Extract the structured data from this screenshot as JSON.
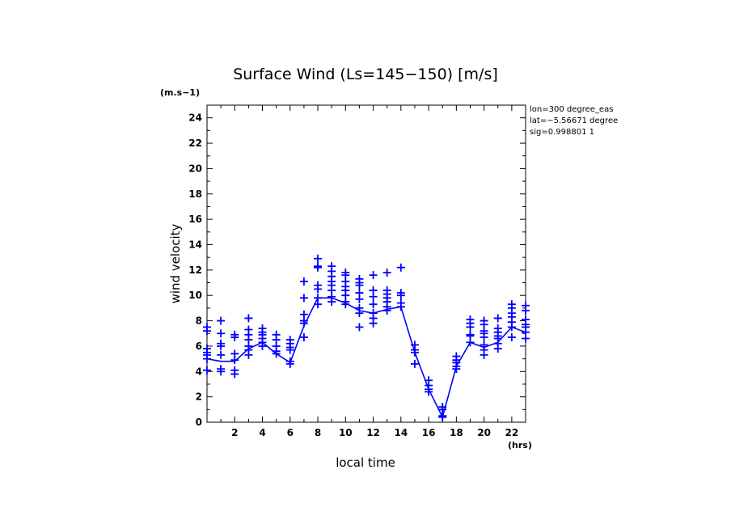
{
  "chart_data": {
    "type": "scatter",
    "title": "Surface Wind  (Ls=145−150) [m/s]",
    "ylabel": "wind velocity",
    "xlabel": "local time",
    "y_unit": "(m.s−1)",
    "x_unit": "(hrs)",
    "info_lines": [
      "lon=300 degree_eas",
      "lat=−5.56671 degree",
      "sig=0.998801 1"
    ],
    "xlim": [
      0,
      23
    ],
    "ylim": [
      0,
      25
    ],
    "x_ticks": [
      2,
      4,
      6,
      8,
      10,
      12,
      14,
      16,
      18,
      20,
      22
    ],
    "x_tick_labels": [
      "2",
      "4",
      "6",
      "8",
      "10",
      "12",
      "14",
      "16",
      "18",
      "20",
      "22"
    ],
    "y_ticks": [
      0,
      2,
      4,
      6,
      8,
      10,
      12,
      14,
      16,
      18,
      20,
      22,
      24
    ],
    "y_tick_labels": [
      "0",
      "2",
      "4",
      "6",
      "8",
      "10",
      "12",
      "14",
      "16",
      "18",
      "20",
      "22",
      "24"
    ],
    "grid": false,
    "color": "#0000ff",
    "series": [
      {
        "type": "line",
        "x": [
          0,
          1,
          2,
          3,
          4,
          5,
          6,
          7,
          8,
          9,
          10,
          11,
          12,
          13,
          14,
          15,
          16,
          17,
          18,
          19,
          20,
          21,
          22,
          23
        ],
        "values": [
          5.0,
          4.8,
          4.8,
          5.8,
          6.3,
          5.4,
          4.7,
          7.6,
          9.8,
          9.8,
          9.4,
          8.8,
          8.6,
          8.9,
          9.1,
          5.5,
          2.6,
          0.4,
          4.4,
          6.3,
          5.9,
          6.3,
          7.5,
          7.1
        ]
      },
      {
        "type": "scatter",
        "marker": "+",
        "points": [
          [
            0,
            4.1
          ],
          [
            0,
            5.0
          ],
          [
            0,
            5.3
          ],
          [
            0,
            5.5
          ],
          [
            0,
            5.8
          ],
          [
            0,
            7.2
          ],
          [
            0,
            7.5
          ],
          [
            1,
            4.0
          ],
          [
            1,
            4.2
          ],
          [
            1,
            5.3
          ],
          [
            1,
            6.0
          ],
          [
            1,
            6.2
          ],
          [
            1,
            7.0
          ],
          [
            1,
            8.0
          ],
          [
            2,
            3.8
          ],
          [
            2,
            4.1
          ],
          [
            2,
            4.9
          ],
          [
            2,
            5.4
          ],
          [
            2,
            6.7
          ],
          [
            2,
            6.9
          ],
          [
            3,
            5.3
          ],
          [
            3,
            5.7
          ],
          [
            3,
            6.0
          ],
          [
            3,
            6.5
          ],
          [
            3,
            6.9
          ],
          [
            3,
            7.3
          ],
          [
            3,
            8.2
          ],
          [
            4,
            6.0
          ],
          [
            4,
            6.3
          ],
          [
            4,
            6.6
          ],
          [
            4,
            6.9
          ],
          [
            4,
            7.1
          ],
          [
            4,
            7.4
          ],
          [
            5,
            5.4
          ],
          [
            5,
            5.6
          ],
          [
            5,
            6.0
          ],
          [
            5,
            6.5
          ],
          [
            5,
            6.9
          ],
          [
            6,
            4.6
          ],
          [
            6,
            4.8
          ],
          [
            6,
            5.7
          ],
          [
            6,
            5.9
          ],
          [
            6,
            6.2
          ],
          [
            6,
            6.5
          ],
          [
            7,
            6.7
          ],
          [
            7,
            7.8
          ],
          [
            7,
            8.0
          ],
          [
            7,
            8.5
          ],
          [
            7,
            9.8
          ],
          [
            7,
            11.1
          ],
          [
            8,
            9.3
          ],
          [
            8,
            9.8
          ],
          [
            8,
            10.5
          ],
          [
            8,
            10.8
          ],
          [
            8,
            12.2
          ],
          [
            8,
            12.3
          ],
          [
            8,
            12.9
          ],
          [
            9,
            9.5
          ],
          [
            9,
            9.9
          ],
          [
            9,
            10.4
          ],
          [
            9,
            10.8
          ],
          [
            9,
            11.1
          ],
          [
            9,
            11.5
          ],
          [
            9,
            11.9
          ],
          [
            9,
            12.3
          ],
          [
            10,
            9.3
          ],
          [
            10,
            9.5
          ],
          [
            10,
            10.0
          ],
          [
            10,
            10.4
          ],
          [
            10,
            10.7
          ],
          [
            10,
            11.1
          ],
          [
            10,
            11.6
          ],
          [
            10,
            11.8
          ],
          [
            11,
            7.5
          ],
          [
            11,
            8.6
          ],
          [
            11,
            9.0
          ],
          [
            11,
            9.7
          ],
          [
            11,
            10.2
          ],
          [
            11,
            10.8
          ],
          [
            11,
            11.0
          ],
          [
            11,
            11.3
          ],
          [
            12,
            7.8
          ],
          [
            12,
            8.2
          ],
          [
            12,
            8.6
          ],
          [
            12,
            9.3
          ],
          [
            12,
            9.9
          ],
          [
            12,
            10.4
          ],
          [
            12,
            11.6
          ],
          [
            13,
            8.8
          ],
          [
            13,
            9.1
          ],
          [
            13,
            9.5
          ],
          [
            13,
            9.8
          ],
          [
            13,
            10.1
          ],
          [
            13,
            10.4
          ],
          [
            13,
            11.8
          ],
          [
            14,
            9.1
          ],
          [
            14,
            9.4
          ],
          [
            14,
            10.0
          ],
          [
            14,
            10.2
          ],
          [
            14,
            12.2
          ],
          [
            15,
            4.6
          ],
          [
            15,
            5.5
          ],
          [
            15,
            5.7
          ],
          [
            15,
            6.1
          ],
          [
            16,
            2.4
          ],
          [
            16,
            2.6
          ],
          [
            16,
            2.9
          ],
          [
            16,
            3.3
          ],
          [
            17,
            0.4
          ],
          [
            17,
            0.5
          ],
          [
            17,
            1.0
          ],
          [
            17,
            1.2
          ],
          [
            18,
            4.2
          ],
          [
            18,
            4.4
          ],
          [
            18,
            4.7
          ],
          [
            18,
            4.9
          ],
          [
            18,
            5.2
          ],
          [
            19,
            6.3
          ],
          [
            19,
            6.8
          ],
          [
            19,
            6.9
          ],
          [
            19,
            7.5
          ],
          [
            19,
            7.8
          ],
          [
            19,
            8.1
          ],
          [
            20,
            5.3
          ],
          [
            20,
            5.7
          ],
          [
            20,
            6.1
          ],
          [
            20,
            6.7
          ],
          [
            20,
            7.0
          ],
          [
            20,
            7.2
          ],
          [
            20,
            7.7
          ],
          [
            20,
            8.0
          ],
          [
            21,
            5.8
          ],
          [
            21,
            6.2
          ],
          [
            21,
            6.6
          ],
          [
            21,
            6.8
          ],
          [
            21,
            7.1
          ],
          [
            21,
            7.4
          ],
          [
            21,
            8.2
          ],
          [
            22,
            6.7
          ],
          [
            22,
            7.5
          ],
          [
            22,
            7.9
          ],
          [
            22,
            8.3
          ],
          [
            22,
            8.6
          ],
          [
            22,
            9.0
          ],
          [
            22,
            9.3
          ],
          [
            23,
            6.6
          ],
          [
            23,
            7.1
          ],
          [
            23,
            7.5
          ],
          [
            23,
            7.7
          ],
          [
            23,
            8.1
          ],
          [
            23,
            8.8
          ],
          [
            23,
            9.2
          ]
        ]
      }
    ]
  }
}
